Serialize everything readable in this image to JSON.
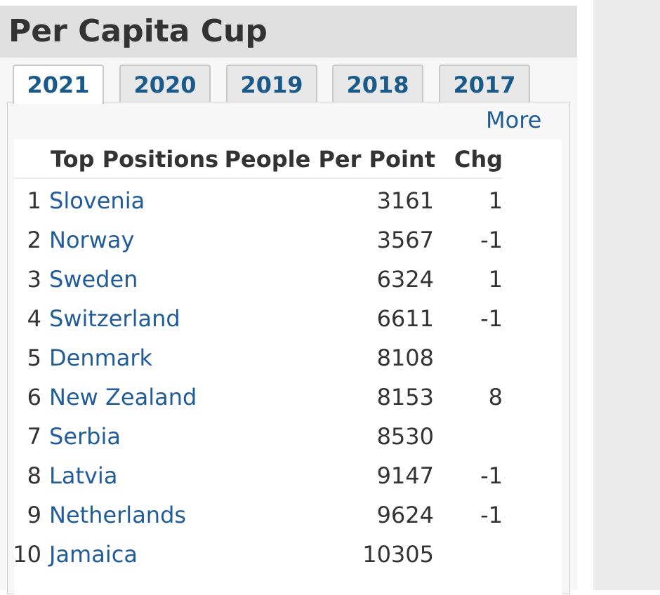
{
  "header": {
    "title": "Per Capita Cup"
  },
  "tabs": [
    {
      "label": "2021",
      "active": true
    },
    {
      "label": "2020",
      "active": false
    },
    {
      "label": "2019",
      "active": false
    },
    {
      "label": "2018",
      "active": false
    },
    {
      "label": "2017",
      "active": false
    }
  ],
  "more": "More",
  "table": {
    "columns": [
      "Top Positions",
      "People Per Point",
      "Chg"
    ],
    "rows": [
      [
        1,
        "Slovenia",
        3161,
        1
      ],
      [
        2,
        "Norway",
        3567,
        -1
      ],
      [
        3,
        "Sweden",
        6324,
        1
      ],
      [
        4,
        "Switzerland",
        6611,
        -1
      ],
      [
        5,
        "Denmark",
        8108,
        null
      ],
      [
        6,
        "New Zealand",
        8153,
        8
      ],
      [
        7,
        "Serbia",
        8530,
        null
      ],
      [
        8,
        "Latvia",
        9147,
        -1
      ],
      [
        9,
        "Netherlands",
        9624,
        -1
      ],
      [
        10,
        "Jamaica",
        10305,
        null
      ]
    ]
  }
}
